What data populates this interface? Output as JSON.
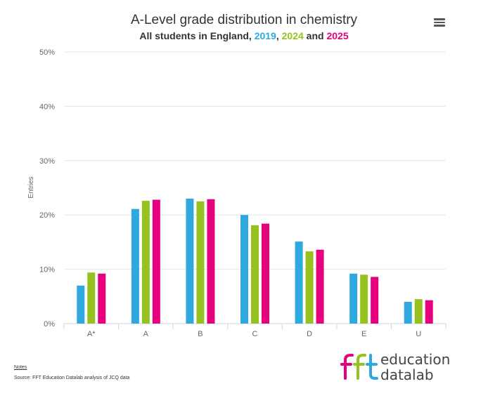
{
  "chart_data": {
    "type": "bar",
    "title": "A-Level grade distribution in chemistry",
    "subtitle": {
      "prefix": "All students in England, ",
      "sep1": ", ",
      "sep2": " and ",
      "years": [
        "2019",
        "2024",
        "2025"
      ]
    },
    "ylabel": "Entries",
    "xlabel": "",
    "ylim": [
      0,
      50
    ],
    "yticks": [
      "0%",
      "10%",
      "20%",
      "30%",
      "40%",
      "50%"
    ],
    "categories": [
      "A*",
      "A",
      "B",
      "C",
      "D",
      "E",
      "U"
    ],
    "series": [
      {
        "name": "2019",
        "color": "#2ea9df",
        "values": [
          7.0,
          21.1,
          23.0,
          20.0,
          15.1,
          9.2,
          4.0
        ]
      },
      {
        "name": "2024",
        "color": "#97c11f",
        "values": [
          9.4,
          22.6,
          22.5,
          18.1,
          13.3,
          9.0,
          4.5
        ]
      },
      {
        "name": "2025",
        "color": "#e6007e",
        "values": [
          9.2,
          22.8,
          22.9,
          18.4,
          13.6,
          8.6,
          4.3
        ]
      }
    ],
    "grid": true,
    "legend": "none"
  },
  "footer": {
    "notes_label": "Notes",
    "source": "Source: FFT Education Datalab analysis of JCQ data"
  },
  "logo": {
    "mark": "fft",
    "line1": "education",
    "line2": "datalab",
    "colors": [
      "#e6007e",
      "#97c11f",
      "#2ea9df"
    ]
  }
}
